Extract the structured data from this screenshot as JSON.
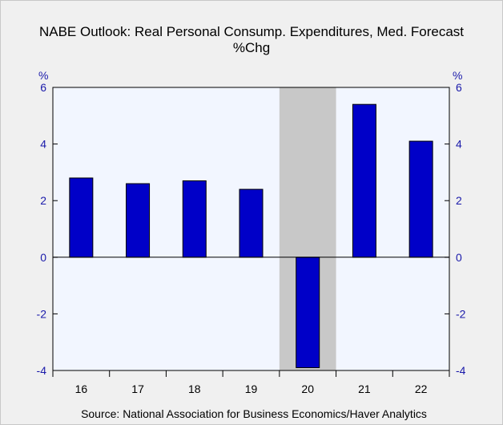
{
  "chart_data": {
    "type": "bar",
    "title": "NABE Outlook: Real Personal Consump. Expenditures, Med. Forecast",
    "subtitle": "%Chg",
    "ylabel_left": "%",
    "ylabel_right": "%",
    "categories": [
      "16",
      "17",
      "18",
      "19",
      "20",
      "21",
      "22"
    ],
    "values": [
      2.8,
      2.6,
      2.7,
      2.4,
      -3.9,
      5.4,
      4.1
    ],
    "ylim": [
      -4,
      6
    ],
    "yticks": [
      -4,
      -2,
      0,
      2,
      4,
      6
    ],
    "shaded_category": "20",
    "grid": false,
    "legend": "none",
    "colors": {
      "bar": "#0000c8",
      "bar_border": "#000000",
      "plot_bg": "#f2f6ff",
      "shade": "#c8c8c8",
      "axis_text": "#1a1aaa"
    },
    "source": "Source:  National Association for Business Economics/Haver Analytics"
  }
}
